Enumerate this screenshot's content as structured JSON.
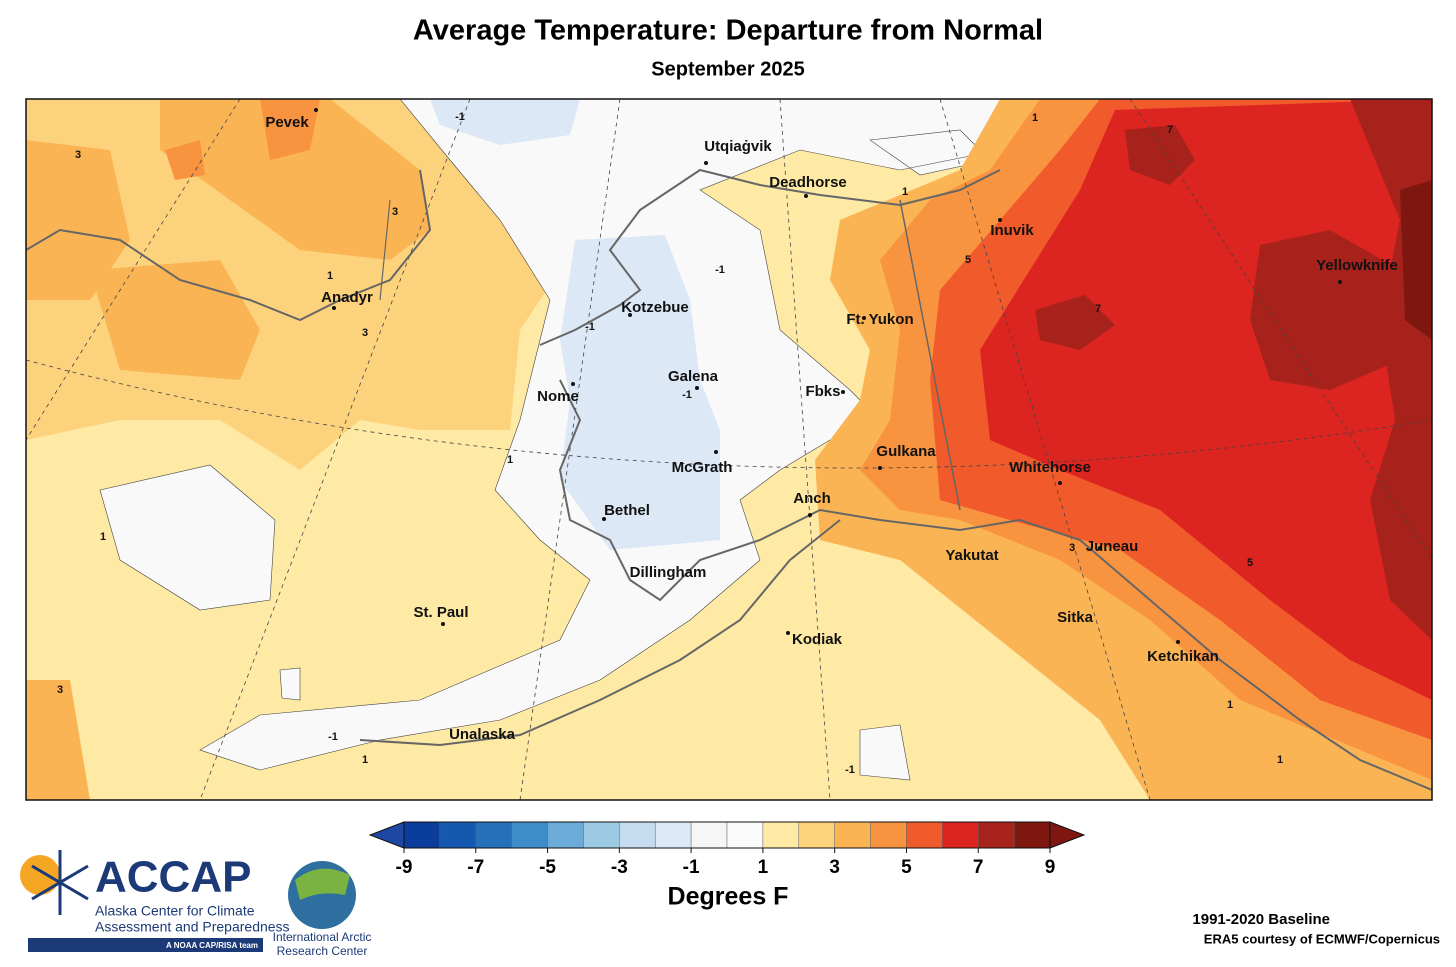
{
  "header": {
    "title": "Average Temperature: Departure from Normal",
    "subtitle": "September 2025"
  },
  "map": {
    "places": [
      "Pevek",
      "Utqiaġvik",
      "Deadhorse",
      "Inuvik",
      "Yellowknife",
      "Anadyr",
      "Kotzebue",
      "Ft. Yukon",
      "Galena",
      "Nome",
      "Fbks",
      "Gulkana",
      "McGrath",
      "Whitehorse",
      "Anch",
      "Bethel",
      "Juneau",
      "Yakutat",
      "Dillingham",
      "St. Paul",
      "Sitka",
      "Kodiak",
      "Ketchikan",
      "Unalaska"
    ],
    "contour_labels": [
      3,
      -1,
      1,
      7,
      3,
      1,
      5,
      -1,
      1,
      -1,
      7,
      3,
      -1,
      1,
      1,
      3,
      5,
      3,
      -1,
      1,
      1,
      -1,
      1
    ]
  },
  "colorbar": {
    "bins": [
      -9,
      -8,
      -7,
      -6,
      -5,
      -4,
      -3,
      -2,
      -1,
      0,
      1,
      2,
      3,
      4,
      5,
      6,
      7,
      8,
      9
    ],
    "colors": [
      "#0b3d9c",
      "#1558b0",
      "#2470b9",
      "#3e8dcb",
      "#6aabd9",
      "#9ccae3",
      "#c5dcf0",
      "#dde9f6",
      "#f6f6f6",
      "#fbfbfb",
      "#fee9a5",
      "#fdd27d",
      "#fbb454",
      "#f89440",
      "#f15a2b",
      "#dc2420",
      "#a8221c",
      "#7d1710"
    ],
    "under_color": "#1c47a3",
    "over_color": "#7d1710",
    "ticks": [
      -9,
      -7,
      -5,
      -3,
      -1,
      1,
      3,
      5,
      7,
      9
    ],
    "label": "Degrees F"
  },
  "logos": {
    "accap": "ACCAP",
    "accap_line1": "Alaska Center for Climate",
    "accap_line2": "Assessment and Preparedness",
    "accap_tag": "A NOAA CAP/RISA team",
    "iarc_line1": "International Arctic",
    "iarc_line2": "Research Center"
  },
  "footer": {
    "baseline": "1991-2020 Baseline",
    "credit": "ERA5 courtesy of ECMWF/Copernicus"
  }
}
